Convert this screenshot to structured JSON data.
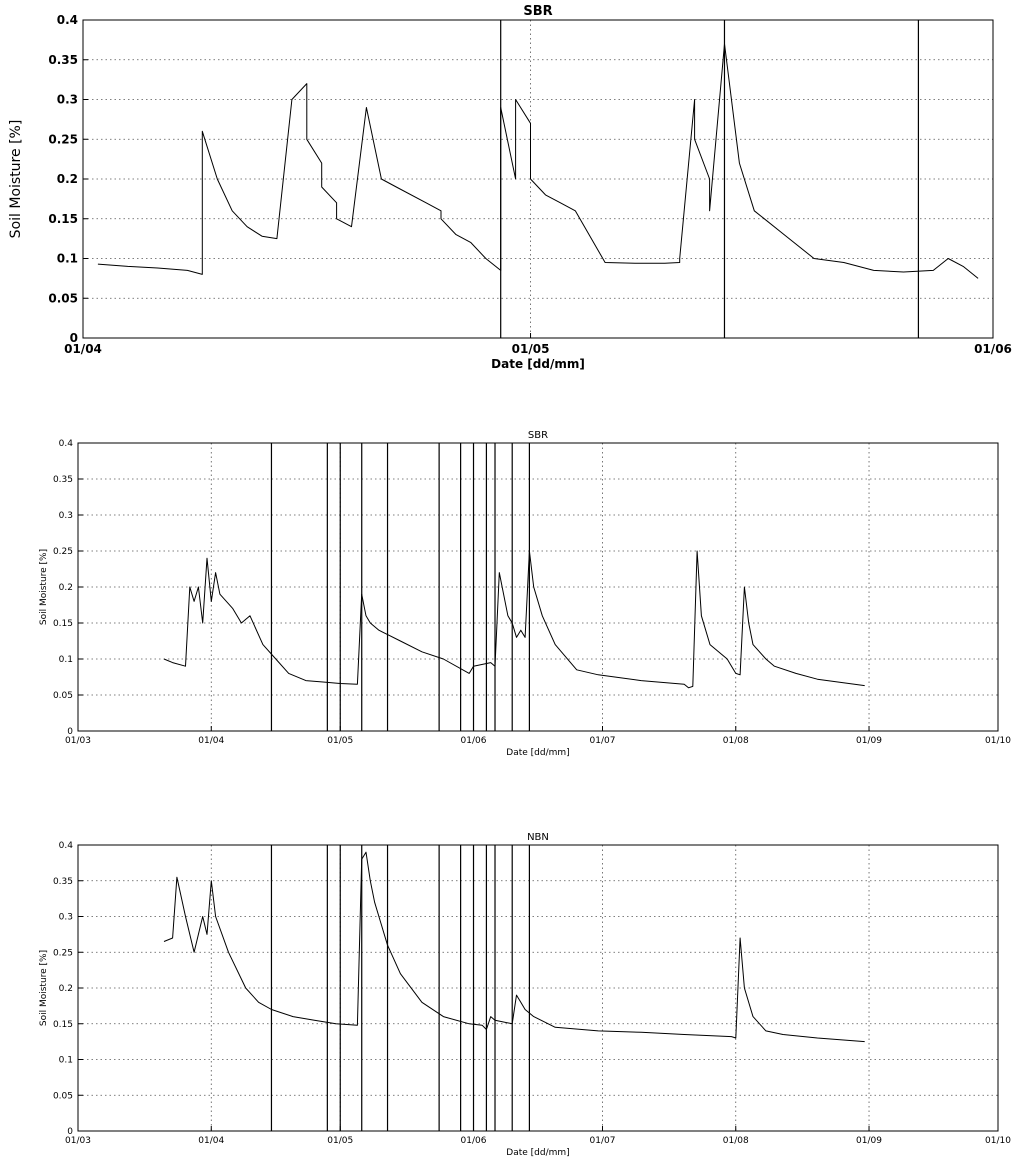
{
  "chart_data": [
    {
      "type": "line",
      "title": "SBR",
      "xlabel": "Date [dd/mm]",
      "ylabel": "Soil Moisture [%]",
      "xlim": [
        "01/04",
        "01/06"
      ],
      "ylim": [
        0,
        0.4
      ],
      "xticks": [
        "01/04",
        "01/05",
        "01/06"
      ],
      "yticks": [
        "0",
        "0.05",
        "0.1",
        "0.15",
        "0.2",
        "0.25",
        "0.3",
        "0.35",
        "0.4"
      ],
      "grid": true,
      "vertical_lines": [
        "29/04",
        "14/05",
        "27/05"
      ],
      "series": [
        {
          "x": [
            "02/04",
            "04/04",
            "06/04",
            "08/04",
            "09/04",
            "09/04",
            "09/04",
            "10/04",
            "11/04",
            "12/04",
            "13/04",
            "14/04",
            "15/04",
            "16/04",
            "16/04",
            "17/04",
            "17/04",
            "18/04",
            "18/04",
            "19/04",
            "20/04",
            "21/04",
            "22/04",
            "24/04",
            "25/04",
            "25/04",
            "26/04",
            "27/04",
            "28/04",
            "29/04",
            "29/04",
            "30/04",
            "30/04",
            "01/05",
            "01/05",
            "01/05",
            "02/05",
            "03/05",
            "04/05",
            "06/05",
            "08/05",
            "10/05",
            "11/05",
            "11/05",
            "12/05",
            "12/05",
            "13/05",
            "13/05",
            "13/05",
            "14/05",
            "15/05",
            "16/05",
            "18/05",
            "20/05",
            "22/05",
            "24/05",
            "26/05",
            "28/05",
            "29/05",
            "30/05",
            "31/05"
          ],
          "y": [
            0.093,
            0.09,
            0.088,
            0.085,
            0.08,
            0.175,
            0.26,
            0.2,
            0.16,
            0.14,
            0.128,
            0.125,
            0.3,
            0.32,
            0.25,
            0.22,
            0.19,
            0.17,
            0.15,
            0.14,
            0.29,
            0.2,
            0.19,
            0.17,
            0.16,
            0.15,
            0.13,
            0.12,
            0.1,
            0.085,
            0.29,
            0.2,
            0.3,
            0.27,
            0.22,
            0.2,
            0.18,
            0.17,
            0.16,
            0.095,
            0.094,
            0.094,
            0.095,
            0.1,
            0.3,
            0.25,
            0.2,
            0.17,
            0.16,
            0.37,
            0.22,
            0.16,
            0.13,
            0.1,
            0.095,
            0.085,
            0.083,
            0.085,
            0.1,
            0.09,
            0.075
          ]
        }
      ]
    },
    {
      "type": "line",
      "title": "SBR",
      "xlabel": "Date [dd/mm]",
      "ylabel": "Soil Moisture [%]",
      "xlim": [
        "01/03",
        "01/10"
      ],
      "ylim": [
        0,
        0.4
      ],
      "xticks": [
        "01/03",
        "01/04",
        "01/05",
        "01/06",
        "01/07",
        "01/08",
        "01/09",
        "01/10"
      ],
      "yticks": [
        "0",
        "0.05",
        "0.1",
        "0.15",
        "0.2",
        "0.25",
        "0.3",
        "0.35",
        "0.4"
      ],
      "grid": true,
      "vertical_lines": [
        "15/04",
        "28/04",
        "01/05",
        "06/05",
        "12/05",
        "24/05",
        "29/05",
        "01/06",
        "04/06",
        "06/06",
        "10/06",
        "14/06"
      ],
      "series": [
        {
          "x": [
            "21/03",
            "23/03",
            "26/03",
            "27/03",
            "28/03",
            "29/03",
            "30/03",
            "31/03",
            "01/04",
            "02/04",
            "03/04",
            "06/04",
            "08/04",
            "10/04",
            "13/04",
            "16/04",
            "19/04",
            "23/04",
            "27/04",
            "01/05",
            "05/05",
            "06/05",
            "07/05",
            "08/05",
            "10/05",
            "15/05",
            "20/05",
            "25/05",
            "31/05",
            "01/06",
            "05/06",
            "06/06",
            "07/06",
            "09/06",
            "10/06",
            "11/06",
            "12/06",
            "13/06",
            "14/06",
            "15/06",
            "17/06",
            "20/06",
            "25/06",
            "30/06",
            "10/07",
            "20/07",
            "21/07",
            "22/07",
            "23/07",
            "24/07",
            "26/07",
            "30/07",
            "31/07",
            "01/08",
            "02/08",
            "03/08",
            "04/08",
            "05/08",
            "08/08",
            "10/08",
            "15/08",
            "20/08",
            "31/08"
          ],
          "y": [
            0.1,
            0.095,
            0.09,
            0.2,
            0.18,
            0.2,
            0.15,
            0.24,
            0.18,
            0.22,
            0.19,
            0.17,
            0.15,
            0.16,
            0.12,
            0.1,
            0.08,
            0.07,
            0.068,
            0.066,
            0.065,
            0.19,
            0.16,
            0.15,
            0.14,
            0.125,
            0.11,
            0.1,
            0.08,
            0.09,
            0.095,
            0.09,
            0.22,
            0.16,
            0.15,
            0.13,
            0.14,
            0.13,
            0.25,
            0.2,
            0.16,
            0.12,
            0.085,
            0.078,
            0.07,
            0.065,
            0.06,
            0.062,
            0.25,
            0.16,
            0.12,
            0.1,
            0.09,
            0.08,
            0.078,
            0.2,
            0.15,
            0.12,
            0.1,
            0.09,
            0.08,
            0.072,
            0.063
          ]
        }
      ]
    },
    {
      "type": "line",
      "title": "NBN",
      "xlabel": "Date [dd/mm]",
      "ylabel": "Soil Moisture [%]",
      "xlim": [
        "01/03",
        "01/10"
      ],
      "ylim": [
        0,
        0.4
      ],
      "xticks": [
        "01/03",
        "01/04",
        "01/05",
        "01/06",
        "01/07",
        "01/08",
        "01/09",
        "01/10"
      ],
      "yticks": [
        "0",
        "0.05",
        "0.1",
        "0.15",
        "0.2",
        "0.25",
        "0.3",
        "0.35",
        "0.4"
      ],
      "grid": true,
      "vertical_lines": [
        "15/04",
        "28/04",
        "01/05",
        "06/05",
        "12/05",
        "24/05",
        "29/05",
        "01/06",
        "04/06",
        "06/06",
        "10/06",
        "14/06"
      ],
      "series": [
        {
          "x": [
            "21/03",
            "23/03",
            "24/03",
            "26/03",
            "28/03",
            "30/03",
            "31/03",
            "01/04",
            "02/04",
            "05/04",
            "09/04",
            "12/04",
            "15/04",
            "20/04",
            "25/04",
            "30/04",
            "05/05",
            "06/05",
            "07/05",
            "08/05",
            "09/05",
            "10/05",
            "12/05",
            "15/05",
            "20/05",
            "25/05",
            "31/05",
            "03/06",
            "04/06",
            "05/06",
            "06/06",
            "10/06",
            "11/06",
            "12/06",
            "13/06",
            "15/06",
            "20/06",
            "30/06",
            "10/07",
            "20/07",
            "31/07",
            "01/08",
            "02/08",
            "03/08",
            "05/08",
            "08/08",
            "12/08",
            "20/08",
            "31/08"
          ],
          "y": [
            0.265,
            0.27,
            0.355,
            0.3,
            0.25,
            0.3,
            0.275,
            0.35,
            0.3,
            0.25,
            0.2,
            0.18,
            0.17,
            0.16,
            0.155,
            0.15,
            0.148,
            0.38,
            0.39,
            0.35,
            0.32,
            0.3,
            0.26,
            0.22,
            0.18,
            0.16,
            0.15,
            0.148,
            0.142,
            0.16,
            0.155,
            0.15,
            0.19,
            0.18,
            0.17,
            0.16,
            0.145,
            0.14,
            0.138,
            0.135,
            0.132,
            0.13,
            0.27,
            0.2,
            0.16,
            0.14,
            0.135,
            0.13,
            0.125
          ]
        }
      ]
    }
  ]
}
